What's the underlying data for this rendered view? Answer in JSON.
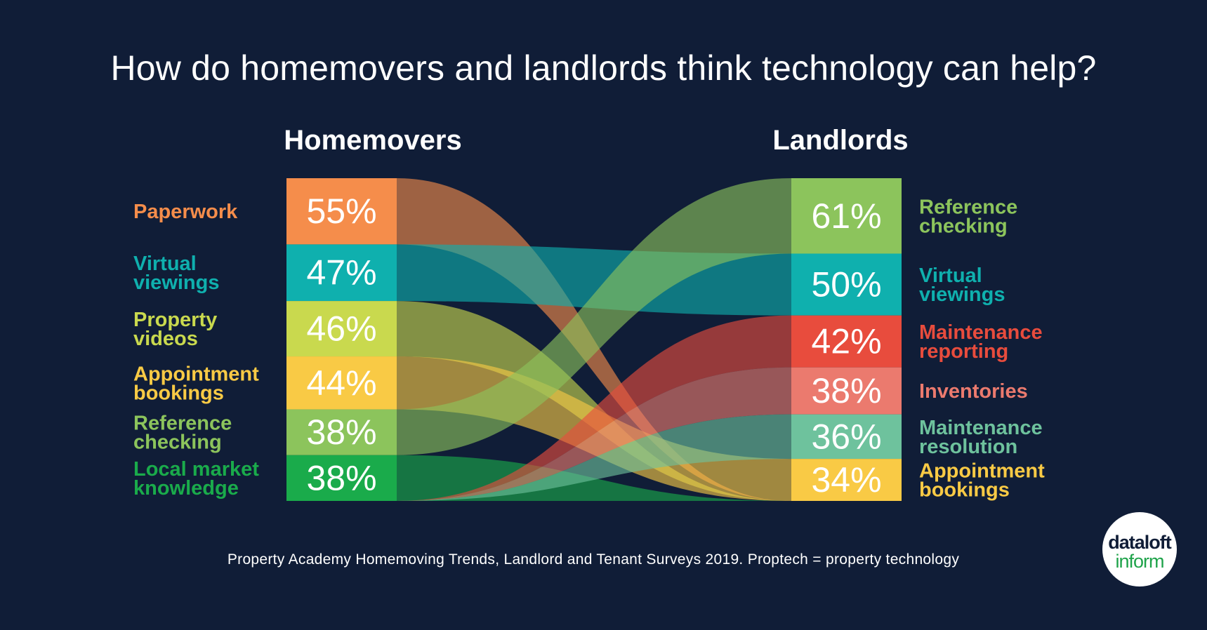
{
  "title": "How do homemovers and landlords think technology can help?",
  "source": "Property Academy Homemoving Trends, Landlord and Tenant Surveys 2019. Proptech = property technology",
  "logo": {
    "line1": "dataloft",
    "line2": "inform"
  },
  "colors": {
    "background": "#101d37",
    "Paperwork": "#f58d4b",
    "Virtual viewings": "#0fb0ae",
    "Property videos": "#c9d94e",
    "Appointment bookings": "#f9ca45",
    "Reference checking": "#8cc45c",
    "Local market knowledge": "#1aab4b",
    "Maintenance reporting": "#e84c3d",
    "Inventories": "#eb7a6e",
    "Maintenance resolution": "#6ec29d"
  },
  "chart_data": {
    "type": "sankey",
    "title": "How do homemovers and landlords think technology can help?",
    "left": {
      "heading": "Homemovers",
      "items": [
        {
          "label": "Paperwork",
          "value": 55,
          "value_label": "55%"
        },
        {
          "label": "Virtual viewings",
          "value": 47,
          "value_label": "47%"
        },
        {
          "label": "Property videos",
          "value": 46,
          "value_label": "46%"
        },
        {
          "label": "Appointment bookings",
          "value": 44,
          "value_label": "44%"
        },
        {
          "label": "Reference checking",
          "value": 38,
          "value_label": "38%"
        },
        {
          "label": "Local market knowledge",
          "value": 38,
          "value_label": "38%"
        }
      ]
    },
    "right": {
      "heading": "Landlords",
      "items": [
        {
          "label": "Reference checking",
          "value": 61,
          "value_label": "61%"
        },
        {
          "label": "Virtual viewings",
          "value": 50,
          "value_label": "50%"
        },
        {
          "label": "Maintenance reporting",
          "value": 42,
          "value_label": "42%"
        },
        {
          "label": "Inventories",
          "value": 38,
          "value_label": "38%"
        },
        {
          "label": "Maintenance resolution",
          "value": 36,
          "value_label": "36%"
        },
        {
          "label": "Appointment bookings",
          "value": 34,
          "value_label": "34%"
        }
      ]
    }
  }
}
